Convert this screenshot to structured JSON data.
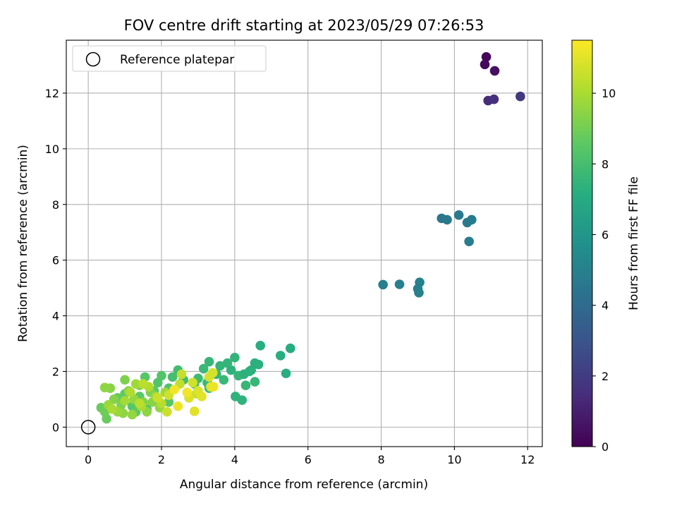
{
  "chart_data": {
    "type": "scatter",
    "title": "FOV centre drift starting at 2023/05/29 07:26:53",
    "xlabel": "Angular distance from reference (arcmin)",
    "ylabel": "Rotation from reference (arcmin)",
    "xlim": [
      -0.6,
      12.4
    ],
    "ylim": [
      -0.7,
      13.9
    ],
    "xticks": [
      0,
      2,
      4,
      6,
      8,
      10,
      12
    ],
    "yticks": [
      0,
      2,
      4,
      6,
      8,
      10,
      12
    ],
    "grid": true,
    "legend": {
      "placement": "top-left",
      "entries": [
        {
          "label": "Reference platepar",
          "marker": "open-circle"
        }
      ]
    },
    "reference_point": {
      "x": 0,
      "y": 0
    },
    "colorbar": {
      "label": "Hours from first FF file",
      "colormap": "viridis",
      "range": [
        0,
        11.5
      ],
      "ticks": [
        0,
        2,
        4,
        6,
        8,
        10
      ]
    },
    "points": [
      [
        10.87,
        13.3,
        0.2
      ],
      [
        10.83,
        13.03,
        0.3
      ],
      [
        11.1,
        12.8,
        0.5
      ],
      [
        10.92,
        11.73,
        1.4
      ],
      [
        11.08,
        11.78,
        1.5
      ],
      [
        11.8,
        11.88,
        1.9
      ],
      [
        9.65,
        7.5,
        4.6
      ],
      [
        9.8,
        7.45,
        4.6
      ],
      [
        10.12,
        7.62,
        4.7
      ],
      [
        10.35,
        7.35,
        4.7
      ],
      [
        10.47,
        7.45,
        4.7
      ],
      [
        10.4,
        6.67,
        4.8
      ],
      [
        8.05,
        5.12,
        4.9
      ],
      [
        8.5,
        5.13,
        4.9
      ],
      [
        9.0,
        4.97,
        5.0
      ],
      [
        9.05,
        5.2,
        5.0
      ],
      [
        9.03,
        4.83,
        5.0
      ],
      [
        4.7,
        2.93,
        7.2
      ],
      [
        5.52,
        2.83,
        7.1
      ],
      [
        5.25,
        2.57,
        7.2
      ],
      [
        5.4,
        1.93,
        7.2
      ],
      [
        4.55,
        2.3,
        7.3
      ],
      [
        4.65,
        2.25,
        7.3
      ],
      [
        4.0,
        2.5,
        7.5
      ],
      [
        4.4,
        2.0,
        7.5
      ],
      [
        4.2,
        0.97,
        7.4
      ],
      [
        4.02,
        1.1,
        7.4
      ],
      [
        4.55,
        1.63,
        7.6
      ],
      [
        4.3,
        1.5,
        7.6
      ],
      [
        3.8,
        2.3,
        7.5
      ],
      [
        3.3,
        2.35,
        7.6
      ],
      [
        3.7,
        1.7,
        7.7
      ],
      [
        3.9,
        2.05,
        7.4
      ],
      [
        3.15,
        2.1,
        7.7
      ],
      [
        3.6,
        2.2,
        7.5
      ],
      [
        4.45,
        2.05,
        7.3
      ],
      [
        4.1,
        1.85,
        7.6
      ],
      [
        3.25,
        1.6,
        7.7
      ],
      [
        3.5,
        1.9,
        7.6
      ],
      [
        4.25,
        1.9,
        7.3
      ],
      [
        2.45,
        2.05,
        7.9
      ],
      [
        2.3,
        1.8,
        8.0
      ],
      [
        2.6,
        1.7,
        7.9
      ],
      [
        2.9,
        1.55,
        8.1
      ],
      [
        3.3,
        1.4,
        8.0
      ],
      [
        3.0,
        1.75,
        7.8
      ],
      [
        2.0,
        1.85,
        8.3
      ],
      [
        1.55,
        1.8,
        8.4
      ],
      [
        1.9,
        1.6,
        8.3
      ],
      [
        1.6,
        0.65,
        8.3
      ],
      [
        1.2,
        0.75,
        8.4
      ],
      [
        2.2,
        1.4,
        8.2
      ],
      [
        1.8,
        1.3,
        8.5
      ],
      [
        1.4,
        1.1,
        8.5
      ],
      [
        2.2,
        0.9,
        8.4
      ],
      [
        1.0,
        1.2,
        8.6
      ],
      [
        1.3,
        0.55,
        8.6
      ],
      [
        0.8,
        1.05,
        8.7
      ],
      [
        0.5,
        0.3,
        8.8
      ],
      [
        0.35,
        0.7,
        8.8
      ],
      [
        0.45,
        0.55,
        8.9
      ],
      [
        1.0,
        1.7,
        9.2
      ],
      [
        1.4,
        1.5,
        9.3
      ],
      [
        1.7,
        1.25,
        9.2
      ],
      [
        0.9,
        0.8,
        9.2
      ],
      [
        0.6,
        1.4,
        9.4
      ],
      [
        0.45,
        1.42,
        9.5
      ],
      [
        0.7,
        1.0,
        9.3
      ],
      [
        1.1,
        1.3,
        9.4
      ],
      [
        1.5,
        0.9,
        9.3
      ],
      [
        0.95,
        0.5,
        9.5
      ],
      [
        1.2,
        0.45,
        9.6
      ],
      [
        1.6,
        0.55,
        9.5
      ],
      [
        1.25,
        1.0,
        9.6
      ],
      [
        1.75,
        0.9,
        9.4
      ],
      [
        1.95,
        0.7,
        9.6
      ],
      [
        0.55,
        0.8,
        9.7
      ],
      [
        0.8,
        0.55,
        9.7
      ],
      [
        2.1,
        1.25,
        9.8
      ],
      [
        1.3,
        1.55,
        9.8
      ],
      [
        1.0,
        0.95,
        9.9
      ],
      [
        1.85,
        1.1,
        9.9
      ],
      [
        0.65,
        0.65,
        10.0
      ],
      [
        1.45,
        0.75,
        10.0
      ],
      [
        1.15,
        1.25,
        10.1
      ],
      [
        1.65,
        1.45,
        10.1
      ],
      [
        2.0,
        0.85,
        10.2
      ],
      [
        1.5,
        1.55,
        10.3
      ],
      [
        1.4,
        0.85,
        10.3
      ],
      [
        2.5,
        1.55,
        10.4
      ],
      [
        2.55,
        1.9,
        10.5
      ],
      [
        2.95,
        1.2,
        10.5
      ],
      [
        2.15,
        0.55,
        10.6
      ],
      [
        1.9,
        1.05,
        10.6
      ],
      [
        2.2,
        1.15,
        10.7
      ],
      [
        2.85,
        1.6,
        10.7
      ],
      [
        3.4,
        1.95,
        10.8
      ],
      [
        3.3,
        1.8,
        10.8
      ],
      [
        2.75,
        1.05,
        10.9
      ],
      [
        3.0,
        1.3,
        10.9
      ],
      [
        3.1,
        1.1,
        11.0
      ],
      [
        2.9,
        0.57,
        11.0
      ],
      [
        3.35,
        1.45,
        11.1
      ],
      [
        3.42,
        1.45,
        11.2
      ],
      [
        2.45,
        0.75,
        11.2
      ],
      [
        2.7,
        1.25,
        11.3
      ],
      [
        2.35,
        1.35,
        11.3
      ]
    ]
  }
}
